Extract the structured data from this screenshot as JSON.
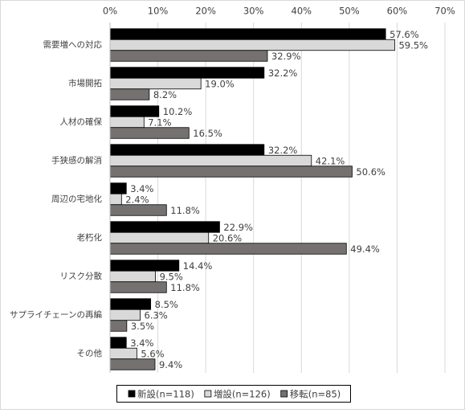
{
  "chart_data": {
    "type": "bar",
    "orientation": "horizontal",
    "categories": [
      "需要増への対応",
      "市場開拓",
      "人材の確保",
      "手狭感の解消",
      "周辺の宅地化",
      "老朽化",
      "リスク分散",
      "サプライチェーンの再編",
      "その他"
    ],
    "series": [
      {
        "name": "新設(n=118)",
        "color": "#000000",
        "values": [
          57.6,
          32.2,
          10.2,
          32.2,
          3.4,
          22.9,
          14.4,
          8.5,
          3.4
        ],
        "value_labels": [
          "57.6%",
          "32.2%",
          "10.2%",
          "32.2%",
          "3.4%",
          "22.9%",
          "14.4%",
          "8.5%",
          "3.4%"
        ]
      },
      {
        "name": "増設(n=126)",
        "color": "#d9d9d9",
        "values": [
          59.5,
          19.0,
          7.1,
          42.1,
          2.4,
          20.6,
          9.5,
          6.3,
          5.6
        ],
        "value_labels": [
          "59.5%",
          "19.0%",
          "7.1%",
          "42.1%",
          "2.4%",
          "20.6%",
          "9.5%",
          "6.3%",
          "5.6%"
        ]
      },
      {
        "name": "移転(n=85)",
        "color": "#767171",
        "values": [
          32.9,
          8.2,
          16.5,
          50.6,
          11.8,
          49.4,
          11.8,
          3.5,
          9.4
        ],
        "value_labels": [
          "32.9%",
          "8.2%",
          "16.5%",
          "50.6%",
          "11.8%",
          "49.4%",
          "11.8%",
          "3.5%",
          "9.4%"
        ]
      }
    ],
    "xlim": [
      0,
      70
    ],
    "xticks": [
      {
        "value": 0,
        "label": "0%"
      },
      {
        "value": 10,
        "label": "10%"
      },
      {
        "value": 20,
        "label": "20%"
      },
      {
        "value": 30,
        "label": "30%"
      },
      {
        "value": 40,
        "label": "40%"
      },
      {
        "value": 50,
        "label": "50%"
      },
      {
        "value": 60,
        "label": "60%"
      },
      {
        "value": 70,
        "label": "70%"
      }
    ],
    "grid": true,
    "legend": "bottom"
  }
}
